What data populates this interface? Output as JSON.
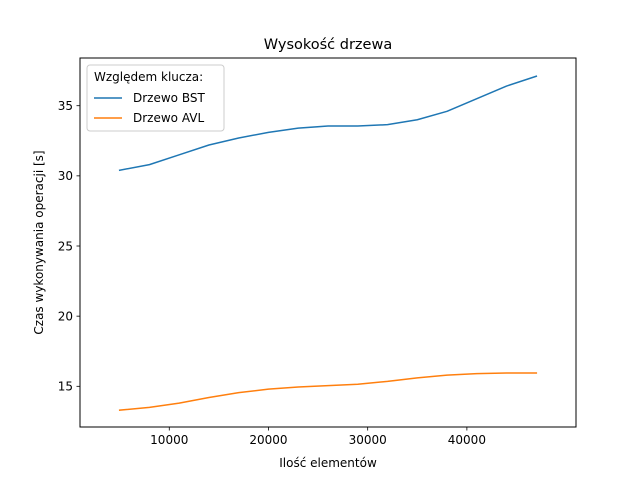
{
  "chart_data": {
    "type": "line",
    "title": "Wysokość drzewa",
    "xlabel": "Ilość elementów",
    "ylabel": "Czas wykonywania operacji [s]",
    "xlim": [
      1000,
      51000
    ],
    "ylim": [
      12.1,
      38.4
    ],
    "xticks": [
      10000,
      20000,
      30000,
      40000
    ],
    "yticks": [
      15,
      20,
      25,
      30,
      35
    ],
    "grid": false,
    "legend": {
      "title": "Względem klucza:",
      "position": "top-left"
    },
    "series": [
      {
        "name": "Drzewo BST",
        "color": "#1f77b4",
        "x": [
          5000,
          8000,
          11000,
          14000,
          17000,
          20000,
          23000,
          26000,
          29000,
          32000,
          35000,
          38000,
          41000,
          44000,
          47000
        ],
        "y": [
          30.4,
          30.8,
          31.5,
          32.2,
          32.7,
          33.1,
          33.4,
          33.55,
          33.55,
          33.65,
          34.0,
          34.6,
          35.5,
          36.4,
          37.1
        ]
      },
      {
        "name": "Drzewo AVL",
        "color": "#ff7f0e",
        "x": [
          5000,
          8000,
          11000,
          14000,
          17000,
          20000,
          23000,
          26000,
          29000,
          32000,
          35000,
          38000,
          41000,
          44000,
          47000
        ],
        "y": [
          13.3,
          13.5,
          13.8,
          14.2,
          14.55,
          14.8,
          14.95,
          15.05,
          15.15,
          15.35,
          15.6,
          15.8,
          15.9,
          15.95,
          15.95
        ]
      }
    ]
  }
}
